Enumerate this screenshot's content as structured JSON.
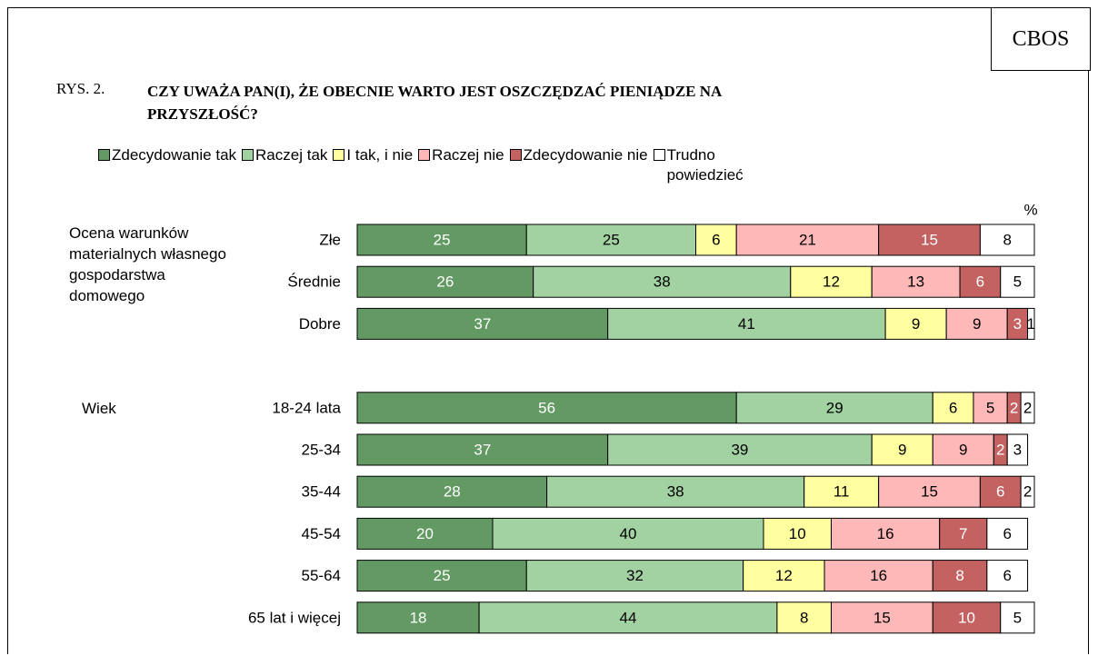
{
  "chart_data": {
    "type": "stacked-bar-horizontal",
    "source": "CBOS",
    "figure_label": "RYS. 2.",
    "title": "CZY UWAŻA PAN(I), ŻE OBECNIE WARTO JEST OSZCZĘDZAĆ PIENIĄDZE NA PRZYSZŁOŚĆ?",
    "unit_label": "%",
    "xlim": [
      0,
      100
    ],
    "groups": [
      {
        "label": "Ocena warunków materialnych własnego gospodarstwa domowego",
        "categories": [
          "Złe",
          "Średnie",
          "Dobre"
        ]
      },
      {
        "label": "Wiek",
        "categories": [
          "18-24 lata",
          "25-34",
          "35-44",
          "45-54",
          "55-64",
          "65 lat i więcej"
        ]
      }
    ],
    "series": [
      {
        "name": "Zdecydowanie tak",
        "color": "#639a63",
        "label_color": "#ffffff",
        "values": [
          25,
          26,
          37,
          56,
          37,
          28,
          20,
          25,
          18
        ]
      },
      {
        "name": "Raczej tak",
        "color": "#a2d2a2",
        "label_color": "#000000",
        "values": [
          25,
          38,
          41,
          29,
          39,
          38,
          40,
          32,
          44
        ]
      },
      {
        "name": "I tak, i nie",
        "color": "#ffffa0",
        "label_color": "#000000",
        "values": [
          6,
          12,
          9,
          6,
          9,
          11,
          10,
          12,
          8
        ]
      },
      {
        "name": "Raczej nie",
        "color": "#ffb8b8",
        "label_color": "#000000",
        "values": [
          21,
          13,
          9,
          5,
          9,
          15,
          16,
          16,
          15
        ]
      },
      {
        "name": "Zdecydowanie nie",
        "color": "#c46262",
        "label_color": "#ffffff",
        "values": [
          15,
          6,
          3,
          2,
          2,
          6,
          7,
          8,
          10
        ]
      },
      {
        "name": "Trudno powiedzieć",
        "color": "#ffffff",
        "label_color": "#000000",
        "values": [
          8,
          5,
          1,
          2,
          3,
          2,
          6,
          6,
          5
        ]
      }
    ]
  }
}
